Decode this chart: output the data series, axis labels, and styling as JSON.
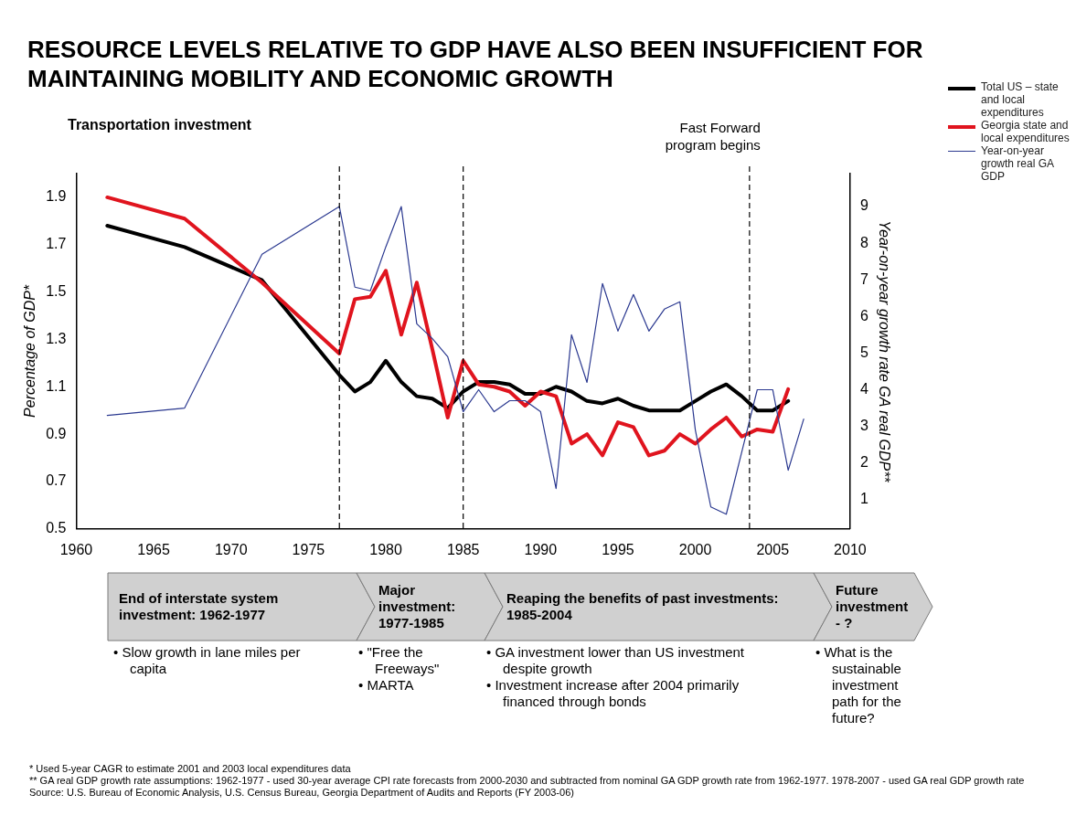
{
  "chart_data": {
    "type": "line",
    "title": "RESOURCE LEVELS RELATIVE TO GDP HAVE ALSO BEEN INSUFFICIENT FOR MAINTAINING MOBILITY AND ECONOMIC GROWTH",
    "subtitle": "Transportation investment",
    "ylabel": "Percentage of GDP*",
    "y2label": "Year-on-year growth rate GA real GDP**",
    "xlim": [
      1960,
      2010
    ],
    "xticks": [
      1960,
      1965,
      1970,
      1975,
      1980,
      1985,
      1990,
      1995,
      2000,
      2005,
      2010
    ],
    "ylim": [
      0.5,
      2.0
    ],
    "yticks": [
      {
        "value": 0.5,
        "label": "0.5"
      },
      {
        "value": 0.7,
        "label": "0.7"
      },
      {
        "value": 0.9,
        "label": "0.9"
      },
      {
        "value": 1.1,
        "label": "1.1"
      },
      {
        "value": 1.3,
        "label": "1.3"
      },
      {
        "value": 1.5,
        "label": "1.5"
      },
      {
        "value": 1.7,
        "label": "1.7"
      },
      {
        "value": 1.9,
        "label": "1.9"
      }
    ],
    "y2lim": [
      0.2,
      9.9
    ],
    "y2ticks": [
      1,
      2,
      3,
      4,
      5,
      6,
      7,
      8,
      9
    ],
    "grid": false,
    "legend": "top right",
    "marker": "none",
    "line_style": "solid",
    "series": [
      {
        "name": "Total US – state and local expenditures",
        "color": "#000000",
        "x": [
          1962,
          1967,
          1972,
          1977,
          1978,
          1979,
          1980,
          1981,
          1982,
          1983,
          1984,
          1985,
          1986,
          1987,
          1988,
          1989,
          1990,
          1991,
          1992,
          1993,
          1994,
          1995,
          1996,
          1997,
          1998,
          1999,
          2000,
          2001,
          2002,
          2003,
          2004,
          2005,
          2006
        ],
        "values": [
          1.78,
          1.69,
          1.55,
          1.15,
          1.08,
          1.12,
          1.21,
          1.12,
          1.06,
          1.05,
          1.01,
          1.08,
          1.12,
          1.12,
          1.11,
          1.07,
          1.07,
          1.1,
          1.08,
          1.04,
          1.03,
          1.05,
          1.02,
          1.0,
          1.0,
          1.0,
          1.04,
          1.08,
          1.11,
          1.06,
          1.0,
          1.0,
          1.04
        ]
      },
      {
        "name": "Georgia state and local expenditures",
        "color": "#e0141e",
        "x": [
          1962,
          1967,
          1972,
          1977,
          1978,
          1979,
          1980,
          1981,
          1982,
          1983,
          1984,
          1985,
          1986,
          1987,
          1988,
          1989,
          1990,
          1991,
          1992,
          1993,
          1994,
          1995,
          1996,
          1997,
          1998,
          1999,
          2000,
          2001,
          2002,
          2003,
          2004,
          2005,
          2006
        ],
        "values": [
          1.9,
          1.81,
          1.54,
          1.24,
          1.47,
          1.48,
          1.59,
          1.32,
          1.54,
          1.26,
          0.97,
          1.21,
          1.11,
          1.1,
          1.08,
          1.02,
          1.08,
          1.06,
          0.86,
          0.9,
          0.81,
          0.95,
          0.93,
          0.81,
          0.83,
          0.9,
          0.86,
          0.92,
          0.97,
          0.89,
          0.92,
          0.91,
          1.09
        ]
      },
      {
        "name": "Year-on-year growth real GA GDP",
        "color": "#2b3990",
        "axis": "y2",
        "x": [
          1962,
          1967,
          1972,
          1977,
          1978,
          1979,
          1980,
          1981,
          1982,
          1983,
          1984,
          1985,
          1986,
          1987,
          1988,
          1989,
          1990,
          1991,
          1992,
          1993,
          1994,
          1995,
          1996,
          1997,
          1998,
          1999,
          2000,
          2001,
          2002,
          2003,
          2004,
          2005,
          2006,
          2007
        ],
        "values": [
          3.3,
          3.5,
          7.7,
          9.0,
          6.8,
          6.7,
          7.9,
          9.0,
          5.8,
          5.4,
          4.9,
          3.4,
          4.0,
          3.4,
          3.7,
          3.7,
          3.4,
          1.3,
          5.5,
          4.2,
          6.9,
          5.6,
          6.6,
          5.6,
          6.2,
          6.4,
          2.9,
          0.8,
          0.6,
          2.3,
          4.0,
          4.0,
          1.8,
          3.2
        ]
      }
    ],
    "ref_lines": [
      {
        "axis": "x",
        "value": 1977,
        "color": "#000000",
        "line_style": "dashed"
      },
      {
        "axis": "x",
        "value": 1985,
        "color": "#000000",
        "line_style": "dashed"
      },
      {
        "axis": "x",
        "value": 2003.5,
        "label": "Fast Forward program begins",
        "color": "#000000",
        "line_style": "dashed"
      }
    ],
    "annotations": [
      "End of interstate system investment: 1962-1977",
      "Major investment: 1977-1985",
      "Reaping the benefits of past investments: 1985-2004",
      "Future investment - ?",
      "• Slow growth in lane miles per capita",
      "• \"Free the Freeways\"",
      "• MARTA",
      "• GA investment lower than US investment despite growth",
      "• Investment increase after 2004 primarily financed through bonds",
      "• What is the sustainable investment path for the future?",
      "* Used 5-year CAGR to estimate 2001 and 2003 local expenditures data",
      "** GA real GDP growth rate assumptions: 1962-1977 - used 30-year average CPI rate forecasts from 2000-2030 and subtracted from nominal GA GDP growth rate from 1962-1977. 1978-2007 - used GA real GDP growth rate",
      "Source: U.S. Bureau of Economic Analysis, U.S. Census Bureau, Georgia Department of Audits and Reports (FY 2003-06)"
    ]
  }
}
